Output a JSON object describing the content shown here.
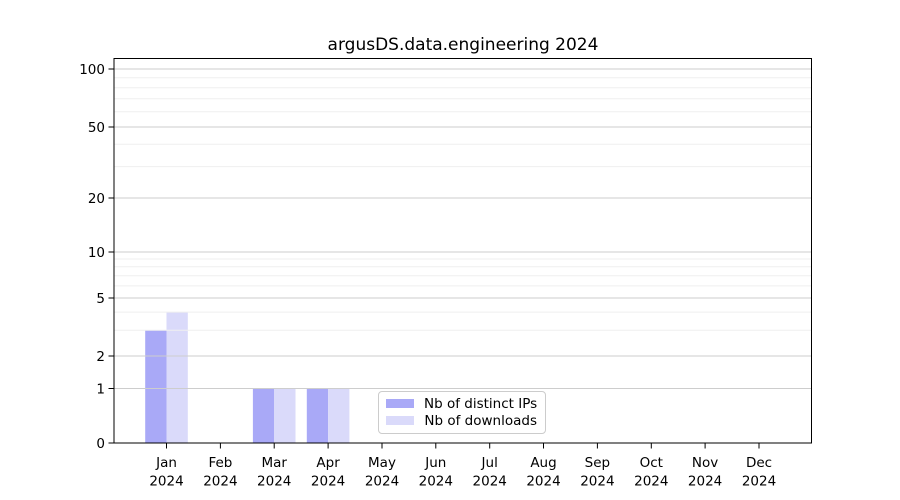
{
  "chart_data": {
    "type": "bar",
    "title": "argusDS.data.engineering 2024",
    "categories": [
      "Jan 2024",
      "Feb 2024",
      "Mar 2024",
      "Apr 2024",
      "May 2024",
      "Jun 2024",
      "Jul 2024",
      "Aug 2024",
      "Sep 2024",
      "Oct 2024",
      "Nov 2024",
      "Dec 2024"
    ],
    "series": [
      {
        "name": "Nb of distinct IPs",
        "color": "#a9a9f7",
        "values": [
          3,
          0,
          1,
          1,
          0,
          0,
          0,
          0,
          0,
          0,
          0,
          0
        ]
      },
      {
        "name": "Nb of downloads",
        "color": "#dadafa",
        "values": [
          4,
          0,
          1,
          1,
          0,
          0,
          0,
          0,
          0,
          0,
          0,
          0
        ]
      }
    ],
    "xlabel": "",
    "ylabel": "",
    "y_axis": {
      "scale": "symlog",
      "ticks": [
        0,
        1,
        2,
        5,
        10,
        20,
        50,
        100
      ],
      "minor_gridlines": [
        3,
        4,
        6,
        7,
        8,
        9,
        30,
        40,
        60,
        70,
        80,
        90
      ],
      "ylim": [
        0,
        114
      ]
    },
    "grid": "on",
    "legend_position": "lower center"
  },
  "colors": {
    "bar_distinct_ips": "#a9a9f7",
    "bar_downloads": "#dadafa",
    "major_grid": "#cdcdcd",
    "minor_grid": "#efefef",
    "spine": "#000000",
    "text": "#000000"
  }
}
